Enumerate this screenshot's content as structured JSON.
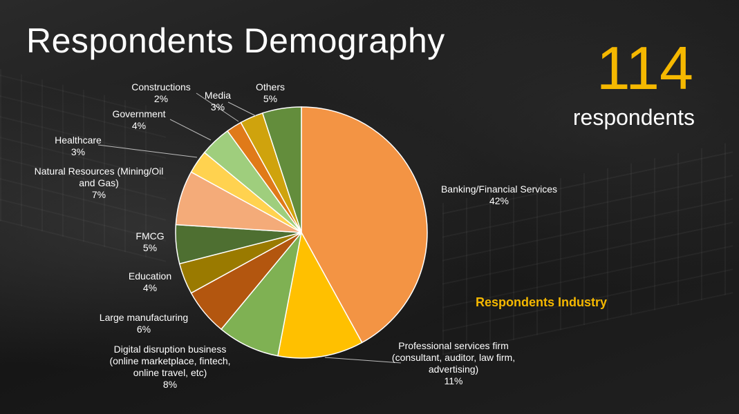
{
  "header": {
    "title": "Respondents Demography",
    "count": "114",
    "count_label": "respondents",
    "chart_caption": "Respondents Industry"
  },
  "chart_data": {
    "type": "pie",
    "title": "Respondents Industry",
    "slices": [
      {
        "label": [
          "Banking/Financial Services"
        ],
        "pct": "42%",
        "value": 42,
        "color": "#f39444"
      },
      {
        "label": [
          "Professional services firm",
          "(consultant, auditor, law firm,",
          "advertising)"
        ],
        "pct": "11%",
        "value": 11,
        "color": "#ffc000"
      },
      {
        "label": [
          "Digital disruption business",
          "(online marketplace, fintech,",
          "online travel, etc)"
        ],
        "pct": "8%",
        "value": 8,
        "color": "#7fb153"
      },
      {
        "label": [
          "Large manufacturing"
        ],
        "pct": "6%",
        "value": 6,
        "color": "#b3560f"
      },
      {
        "label": [
          "Education"
        ],
        "pct": "4%",
        "value": 4,
        "color": "#9a7a00"
      },
      {
        "label": [
          "FMCG"
        ],
        "pct": "5%",
        "value": 5,
        "color": "#4e6f31"
      },
      {
        "label": [
          "Natural Resources (Mining/Oil",
          "and Gas)"
        ],
        "pct": "7%",
        "value": 7,
        "color": "#f4ab79"
      },
      {
        "label": [
          "Healthcare"
        ],
        "pct": "3%",
        "value": 3,
        "color": "#ffd24f"
      },
      {
        "label": [
          "Government"
        ],
        "pct": "4%",
        "value": 4,
        "color": "#9fce7d"
      },
      {
        "label": [
          "Constructions"
        ],
        "pct": "2%",
        "value": 2,
        "color": "#e07a19"
      },
      {
        "label": [
          "Media"
        ],
        "pct": "3%",
        "value": 3,
        "color": "#cfa30d"
      },
      {
        "label": [
          "Others"
        ],
        "pct": "5%",
        "value": 5,
        "color": "#638d3c"
      }
    ]
  }
}
